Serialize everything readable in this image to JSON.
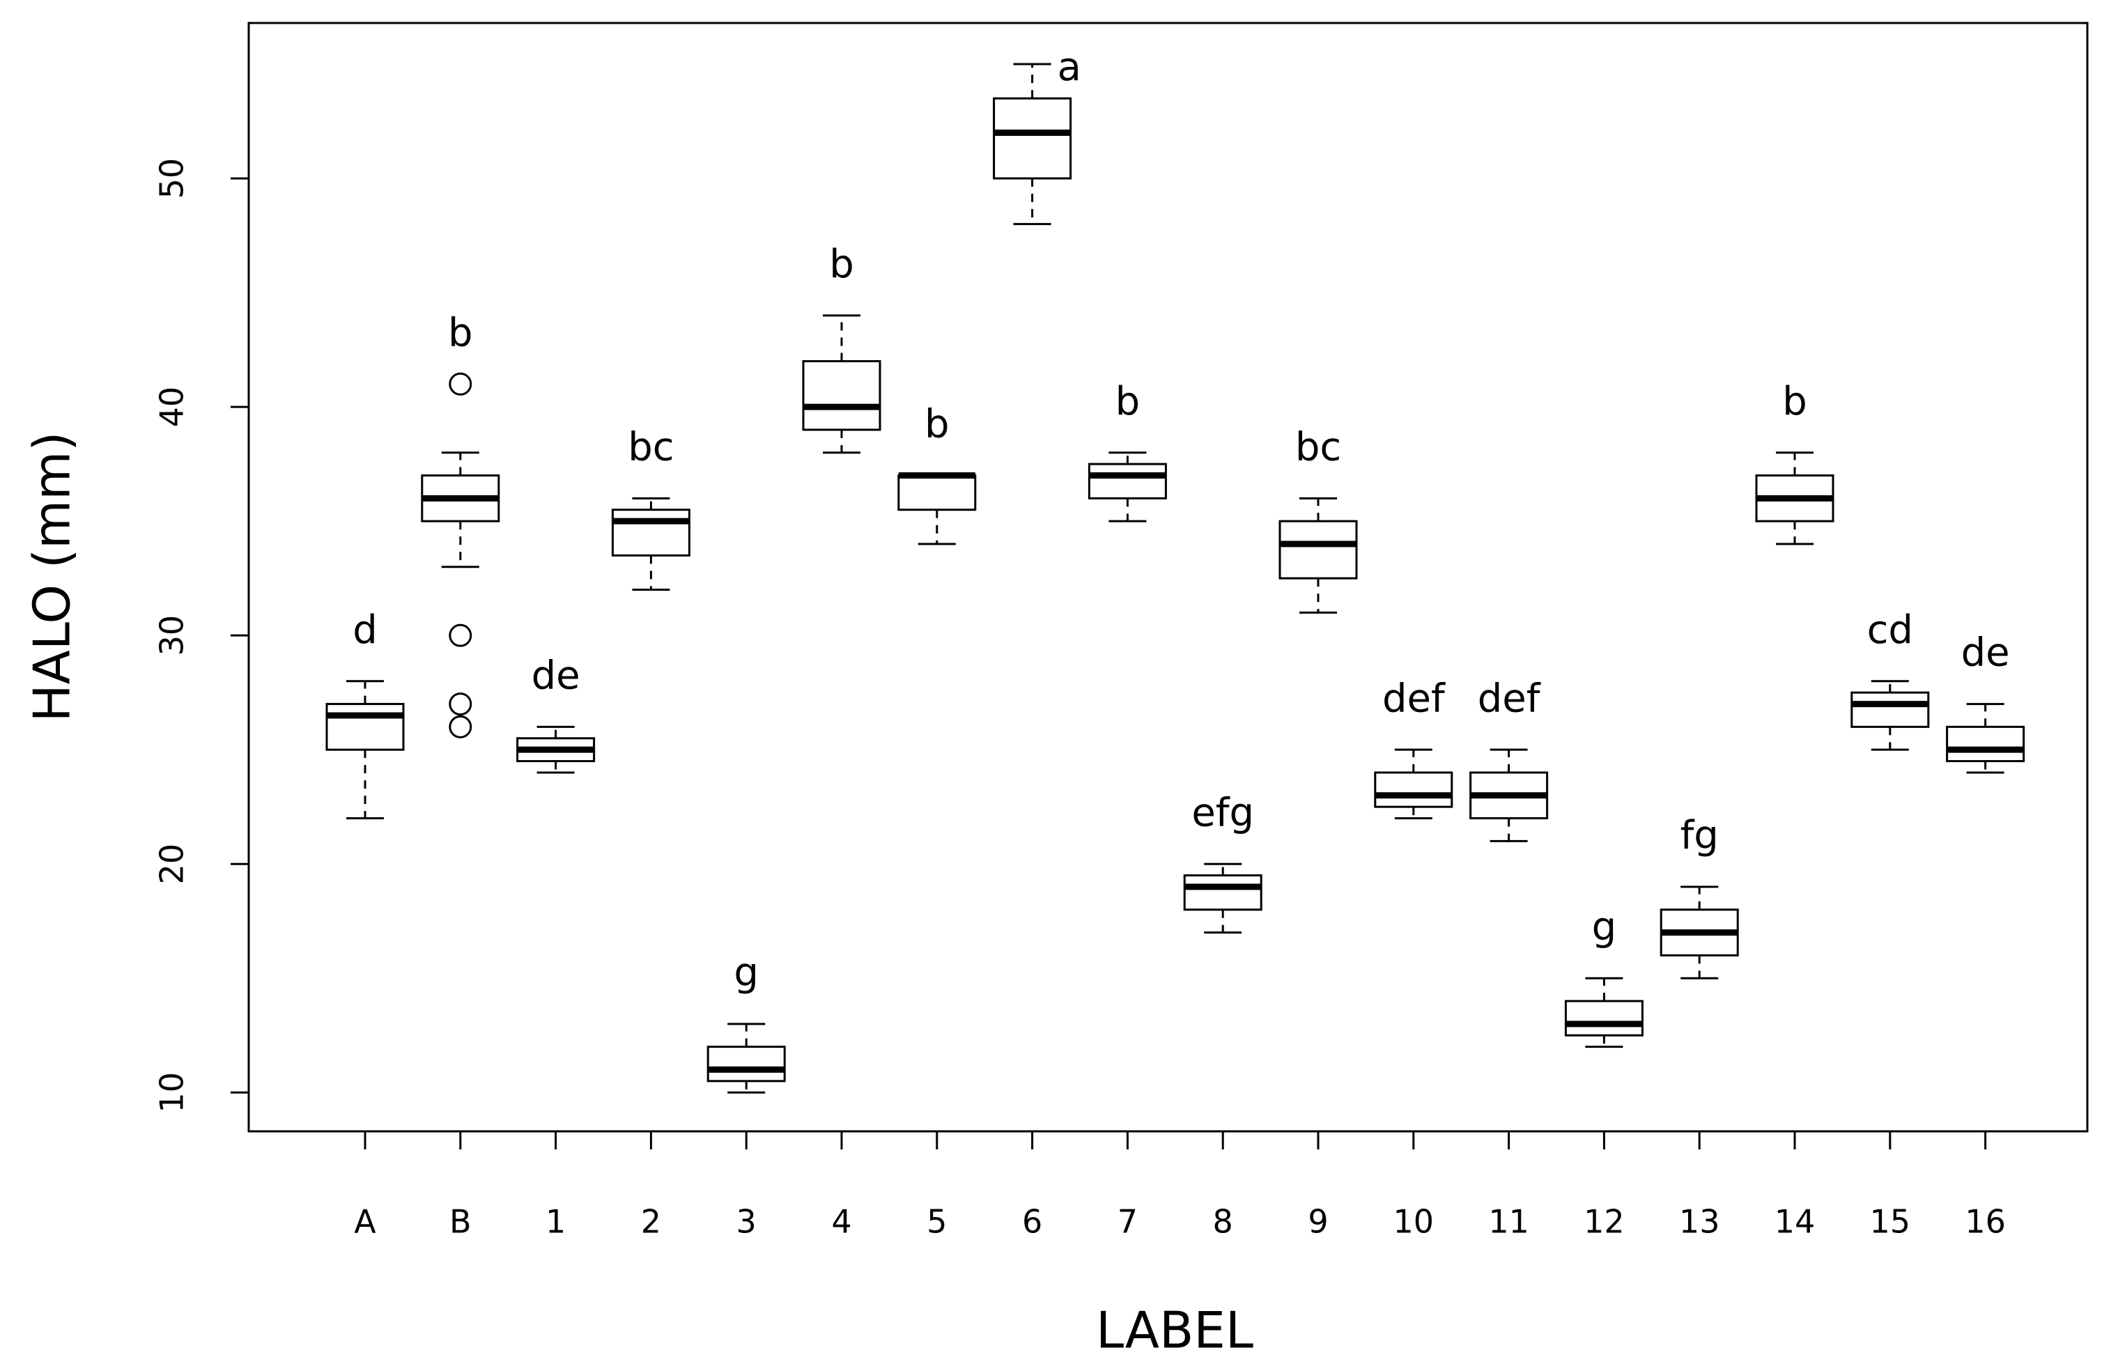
{
  "chart_data": {
    "type": "boxplot",
    "x_label": "LABEL",
    "y_label": "HALO (mm)",
    "categories": [
      "A",
      "B",
      "1",
      "2",
      "3",
      "4",
      "5",
      "6",
      "7",
      "8",
      "9",
      "10",
      "11",
      "12",
      "13",
      "14",
      "15",
      "16"
    ],
    "boxes": [
      {
        "min": 22,
        "q1": 25,
        "median": 26.5,
        "q3": 27,
        "max": 28,
        "letter": "d"
      },
      {
        "min": 33,
        "q1": 35,
        "median": 36,
        "q3": 37,
        "max": 38,
        "outliers": [
          41,
          30,
          27,
          26
        ],
        "letter": "b"
      },
      {
        "min": 24,
        "q1": 24.5,
        "median": 25,
        "q3": 25.5,
        "max": 26,
        "letter": "de"
      },
      {
        "min": 32,
        "q1": 33.5,
        "median": 35,
        "q3": 35.5,
        "max": 36,
        "letter": "bc"
      },
      {
        "min": 10,
        "q1": 10.5,
        "median": 11,
        "q3": 12,
        "max": 13,
        "letter": "g"
      },
      {
        "min": 38,
        "q1": 39,
        "median": 40,
        "q3": 42,
        "max": 44,
        "letter": "b"
      },
      {
        "min": 34,
        "q1": 35.5,
        "median": 37,
        "q3": 37,
        "max": 37,
        "letter": "b"
      },
      {
        "min": 48,
        "q1": 50,
        "median": 52,
        "q3": 53.5,
        "max": 55,
        "letter": "a"
      },
      {
        "min": 35,
        "q1": 36,
        "median": 37,
        "q3": 37.5,
        "max": 38,
        "letter": "b"
      },
      {
        "min": 17,
        "q1": 18,
        "median": 19,
        "q3": 19.5,
        "max": 20,
        "letter": "efg"
      },
      {
        "min": 31,
        "q1": 32.5,
        "median": 34,
        "q3": 35,
        "max": 36,
        "letter": "bc"
      },
      {
        "min": 22,
        "q1": 22.5,
        "median": 23,
        "q3": 24,
        "max": 25,
        "letter": "def"
      },
      {
        "min": 21,
        "q1": 22,
        "median": 23,
        "q3": 24,
        "max": 25,
        "letter": "def"
      },
      {
        "min": 12,
        "q1": 12.5,
        "median": 13,
        "q3": 14,
        "max": 15,
        "letter": "g"
      },
      {
        "min": 15,
        "q1": 16,
        "median": 17,
        "q3": 18,
        "max": 19,
        "letter": "fg"
      },
      {
        "min": 34,
        "q1": 35,
        "median": 36,
        "q3": 37,
        "max": 38,
        "letter": "b"
      },
      {
        "min": 25,
        "q1": 26,
        "median": 27,
        "q3": 27.5,
        "max": 28,
        "letter": "cd"
      },
      {
        "min": 24,
        "q1": 24.5,
        "median": 25,
        "q3": 26,
        "max": 27,
        "letter": "de"
      }
    ],
    "color": "#000000",
    "ylim": [
      8.3,
      56.8
    ],
    "yticks": [
      10,
      20,
      30,
      40,
      50
    ]
  }
}
